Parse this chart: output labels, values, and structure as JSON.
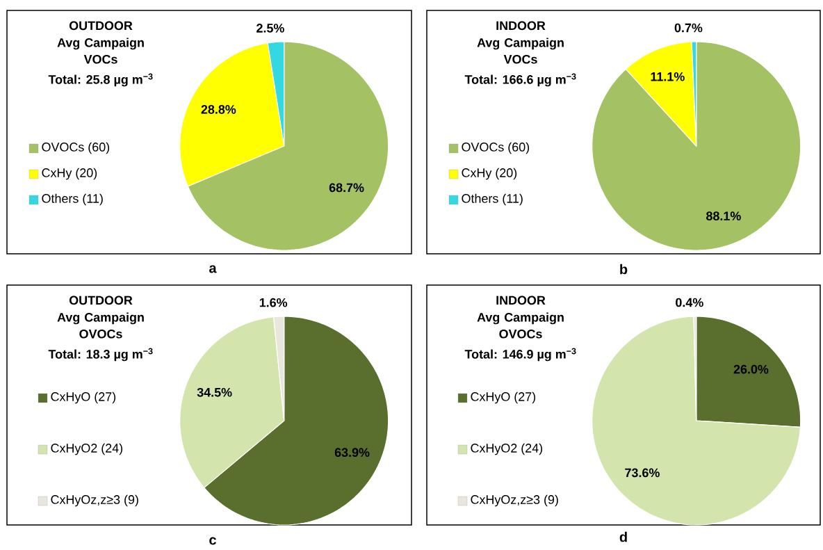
{
  "chart_data": [
    {
      "type": "pie",
      "title": "OUTDOOR",
      "subtitle": "Avg Campaign VOCs",
      "annotations": [
        "Total: 25.8 µg m$^{−3}$",
        "a"
      ],
      "categories": [
        "OVOCs (60)",
        "CxHy (20)",
        "Others  (11)"
      ],
      "values": [
        68.7,
        28.8,
        2.5
      ],
      "colors": [
        "#a4c263",
        "#ffff00",
        "#33d9e0"
      ],
      "value_labels": [
        "68.7%",
        "28.8%",
        "2.5%"
      ],
      "legend": "left"
    },
    {
      "type": "pie",
      "title": "INDOOR",
      "subtitle": "Avg Campaign VOCs",
      "annotations": [
        "Total: 166.6 µg m$^{−3}$",
        "b"
      ],
      "categories": [
        "OVOCs (60)",
        "CxHy (20)",
        "Others  (11)"
      ],
      "values": [
        88.1,
        11.1,
        0.7
      ],
      "colors": [
        "#a4c263",
        "#ffff00",
        "#33d9e0"
      ],
      "value_labels": [
        "88.1%",
        "11.1%",
        "0.7%"
      ],
      "legend": "left"
    },
    {
      "type": "pie",
      "title": "OUTDOOR",
      "subtitle": "Avg Campaign OVOCs",
      "annotations": [
        "Total: 18.3 µg m$^{−3}$",
        "c"
      ],
      "categories": [
        "CxHyO  (27)",
        "CxHyO2 (24)",
        "CxHyOz,z≥3 (9)"
      ],
      "values": [
        63.9,
        34.5,
        1.6
      ],
      "colors": [
        "#5a6e2e",
        "#d3e4ad",
        "#e9e7dd"
      ],
      "value_labels": [
        "63.9%",
        "34.5%",
        "1.6%"
      ],
      "legend": "left"
    },
    {
      "type": "pie",
      "title": "INDOOR",
      "subtitle": "Avg Campaign OVOCs",
      "annotations": [
        "Total: 146.9 µg m$^{−3}$",
        "d"
      ],
      "categories": [
        "CxHyO  (27)",
        "CxHyO2 (24)",
        "CxHyOz,z≥3 (9)"
      ],
      "values": [
        26.0,
        73.6,
        0.4
      ],
      "colors": [
        "#5a6e2e",
        "#d3e4ad",
        "#e9e7dd"
      ],
      "value_labels": [
        "26.0%",
        "73.6%",
        "0.4%"
      ],
      "legend": "left"
    }
  ]
}
